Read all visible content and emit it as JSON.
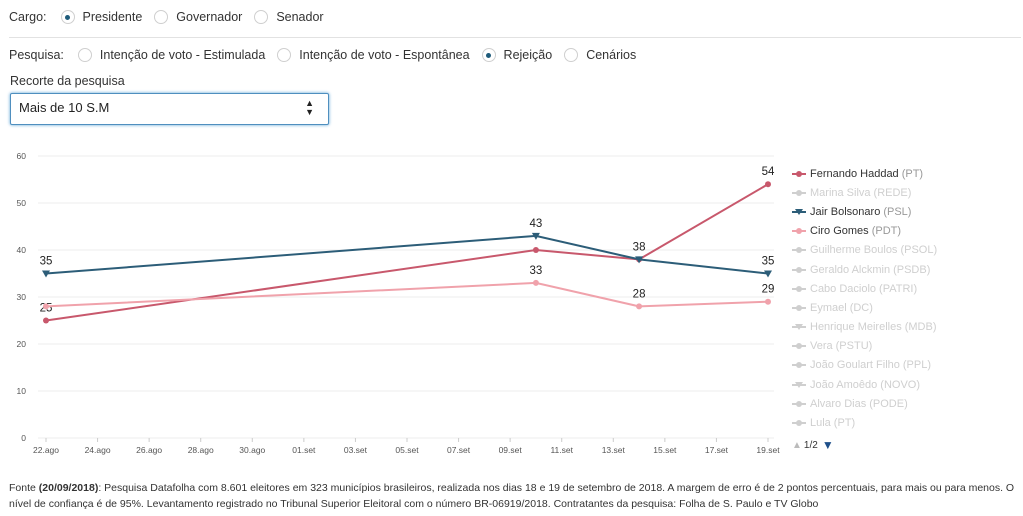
{
  "cargo": {
    "label": "Cargo:",
    "options": [
      "Presidente",
      "Governador",
      "Senador"
    ],
    "selected": 0
  },
  "pesquisa": {
    "label": "Pesquisa:",
    "options": [
      "Intenção de voto - Estimulada",
      "Intenção de voto - Espontânea",
      "Rejeição",
      "Cenários"
    ],
    "selected": 2
  },
  "recorte": {
    "label": "Recorte da pesquisa",
    "value": "Mais de 10 S.M"
  },
  "chart_data": {
    "type": "line",
    "x_ticks": [
      "22.ago",
      "24.ago",
      "26.ago",
      "28.ago",
      "30.ago",
      "01.set",
      "03.set",
      "05.set",
      "07.set",
      "09.set",
      "11.set",
      "13.set",
      "15.set",
      "17.set",
      "19.set"
    ],
    "x": [
      "22.ago",
      "10.set",
      "14.set",
      "19.set"
    ],
    "ylim": [
      0,
      60
    ],
    "y_ticks": [
      0,
      10,
      20,
      30,
      40,
      50,
      60
    ],
    "grid": true,
    "series": [
      {
        "name": "Fernando Haddad",
        "party": "(PT)",
        "color": "#c8586c",
        "values": [
          25,
          40,
          38,
          54
        ],
        "labels": [
          25,
          null,
          null,
          54
        ],
        "marker": "circle"
      },
      {
        "name": "Jair Bolsonaro",
        "party": "(PSL)",
        "color": "#2c5d78",
        "values": [
          35,
          43,
          38,
          35
        ],
        "labels": [
          35,
          43,
          38,
          35
        ],
        "marker": "triangle"
      },
      {
        "name": "Ciro Gomes",
        "party": "(PDT)",
        "color": "#f0a2ab",
        "values": [
          28,
          33,
          28,
          29
        ],
        "labels": [
          null,
          33,
          28,
          29
        ],
        "marker": "circle"
      }
    ]
  },
  "legend": {
    "items": [
      {
        "name": "Fernando Haddad",
        "party": "(PT)",
        "active": true,
        "color": "#c8586c",
        "marker": "circle"
      },
      {
        "name": "Marina Silva",
        "party": "(REDE)",
        "active": false,
        "color": "#cfcfcf",
        "marker": "circle"
      },
      {
        "name": "Jair Bolsonaro",
        "party": "(PSL)",
        "active": true,
        "color": "#2c5d78",
        "marker": "triangle"
      },
      {
        "name": "Ciro Gomes",
        "party": "(PDT)",
        "active": true,
        "color": "#f0a2ab",
        "marker": "circle"
      },
      {
        "name": "Guilherme Boulos",
        "party": "(PSOL)",
        "active": false,
        "color": "#cfcfcf",
        "marker": "circle"
      },
      {
        "name": "Geraldo Alckmin",
        "party": "(PSDB)",
        "active": false,
        "color": "#cfcfcf",
        "marker": "circle"
      },
      {
        "name": "Cabo Daciolo",
        "party": "(PATRI)",
        "active": false,
        "color": "#cfcfcf",
        "marker": "circle"
      },
      {
        "name": "Eymael",
        "party": "(DC)",
        "active": false,
        "color": "#cfcfcf",
        "marker": "circle"
      },
      {
        "name": "Henrique Meirelles",
        "party": "(MDB)",
        "active": false,
        "color": "#cfcfcf",
        "marker": "triangle"
      },
      {
        "name": "Vera",
        "party": "(PSTU)",
        "active": false,
        "color": "#cfcfcf",
        "marker": "circle"
      },
      {
        "name": "João Goulart Filho",
        "party": "(PPL)",
        "active": false,
        "color": "#cfcfcf",
        "marker": "circle"
      },
      {
        "name": "João Amoêdo",
        "party": "(NOVO)",
        "active": false,
        "color": "#cfcfcf",
        "marker": "triangle"
      },
      {
        "name": "Alvaro Dias",
        "party": "(PODE)",
        "active": false,
        "color": "#cfcfcf",
        "marker": "circle"
      },
      {
        "name": "Lula",
        "party": "(PT)",
        "active": false,
        "color": "#cfcfcf",
        "marker": "circle"
      }
    ],
    "page": "1/2"
  },
  "footnote": {
    "prefix": "Fonte ",
    "date": "(20/09/2018)",
    "text": ": Pesquisa Datafolha com 8.601 eleitores em 323 municípios brasileiros, realizada nos dias 18 e 19 de setembro de 2018. A margem de erro é de 2 pontos percentuais, para mais ou para menos. O nível de confiança é de 95%. Levantamento registrado no Tribunal Superior Eleitoral com o número BR-06919/2018. Contratantes da pesquisa: Folha de S. Paulo e TV Globo"
  }
}
